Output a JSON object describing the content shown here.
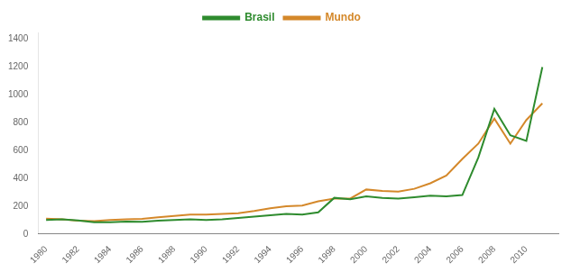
{
  "chart_data": {
    "type": "line",
    "x": [
      1980,
      1981,
      1982,
      1983,
      1984,
      1985,
      1986,
      1987,
      1988,
      1989,
      1990,
      1991,
      1992,
      1993,
      1994,
      1995,
      1996,
      1997,
      1998,
      1999,
      2000,
      2001,
      2002,
      2003,
      2004,
      2005,
      2006,
      2007,
      2008,
      2009,
      2010,
      2011
    ],
    "series": [
      {
        "name": "Brasil",
        "color": "#2e8b2e",
        "values": [
          100,
          105,
          98,
          85,
          85,
          90,
          88,
          95,
          100,
          105,
          100,
          105,
          115,
          125,
          135,
          145,
          140,
          155,
          260,
          250,
          270,
          260,
          255,
          265,
          275,
          270,
          280,
          550,
          900,
          710,
          670,
          1200
        ]
      },
      {
        "name": "Mundo",
        "color": "#d4882a",
        "values": [
          110,
          105,
          95,
          92,
          100,
          105,
          108,
          120,
          130,
          140,
          140,
          145,
          150,
          165,
          185,
          200,
          205,
          235,
          255,
          255,
          320,
          310,
          305,
          325,
          365,
          420,
          540,
          650,
          830,
          650,
          820,
          940
        ]
      }
    ],
    "xlim": [
      1979.5,
      2012
    ],
    "ylim": [
      0,
      1450
    ],
    "xticks": [
      1980,
      1982,
      1984,
      1986,
      1988,
      1990,
      1992,
      1994,
      1996,
      1998,
      2000,
      2002,
      2004,
      2006,
      2008,
      2010
    ],
    "yticks": [
      0,
      200,
      400,
      600,
      800,
      1000,
      1200,
      1400
    ],
    "grid": false,
    "legend": "top"
  }
}
